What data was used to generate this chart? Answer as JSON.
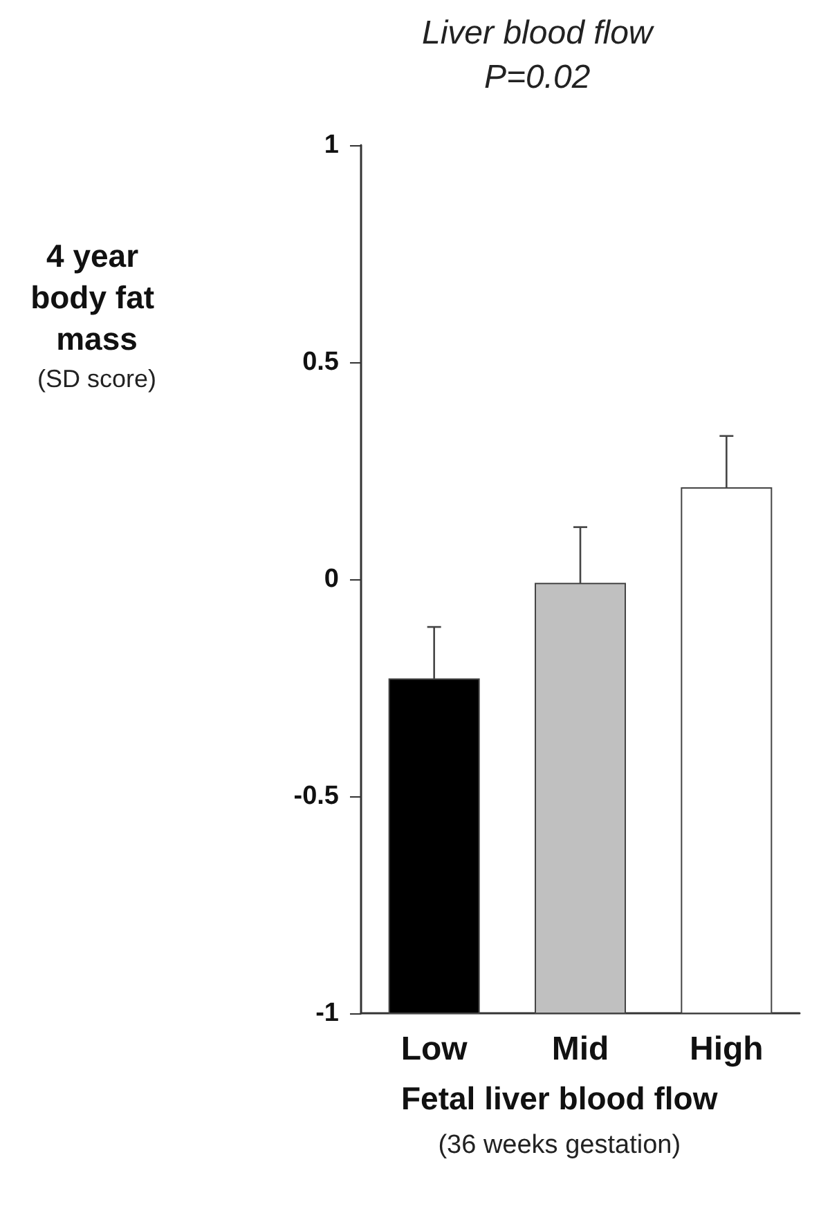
{
  "chart_data": {
    "type": "bar",
    "title": "Liver blood flow",
    "subtitle": "P=0.02",
    "ylabel": "4 year body fat mass (SD score)",
    "xlabel": "Fetal liver blood flow (36 weeks gestation)",
    "categories": [
      "Low",
      "Mid",
      "High"
    ],
    "base": [
      -1,
      -1,
      -1
    ],
    "values": [
      0.77,
      0.99,
      1.21
    ],
    "colors": [
      "#000000",
      "#c0c0c0",
      "#ffffff"
    ],
    "errors": [
      [
        -0.23,
        -0.11
      ],
      [
        -0.01,
        0.12
      ],
      [
        0.21,
        0.33
      ]
    ],
    "ylim": [
      -1,
      1
    ],
    "yticks": [
      -1,
      -0.5,
      0,
      0.5,
      1
    ],
    "grid": false,
    "legend": false
  }
}
